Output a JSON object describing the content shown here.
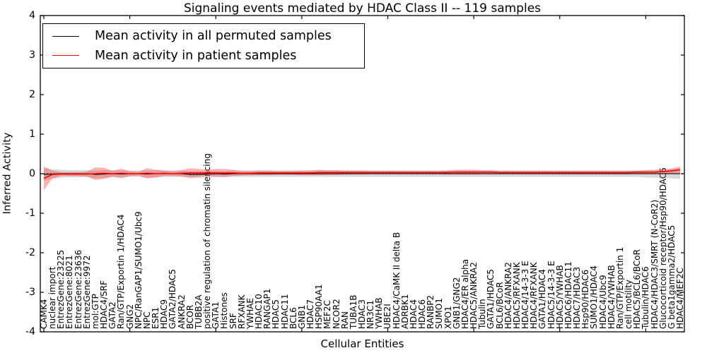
{
  "chart_data": {
    "type": "line",
    "title": "Signaling events mediated by HDAC Class II -- 119 samples",
    "xlabel": "Cellular Entities",
    "ylabel": "Inferred Activity",
    "ylim": [
      -4,
      4
    ],
    "ytick_labels": [
      "4",
      "3",
      "2",
      "1",
      "0",
      "-1",
      "-2",
      "-3",
      "-4"
    ],
    "yticks": [
      4,
      3,
      2,
      1,
      0,
      -1,
      -2,
      -3,
      -4
    ],
    "grid": false,
    "legend_position": "upper left",
    "zero_line_style": "black dotted",
    "frame_color": "#000000",
    "categories": [
      "CAMK4",
      "nuclear import",
      "EntrezGene:23225",
      "EntrezGene:8021",
      "EntrezGene:23636",
      "EntrezGene:9972",
      "mol:GTP",
      "HDAC4/SRF",
      "GATA2",
      "Ran/GTP/Exportin 1/HDAC4",
      "GNG2",
      "NPC/RanGAP1/SUMO1/Ubc9",
      "NPC",
      "ESR1",
      "HDAC9",
      "GATA2/HDAC5",
      "ANKRA2",
      "BCOR",
      "TUBB2A",
      "positive regulation of chromatin silencing",
      "GATA1",
      "Histones",
      "SRF",
      "RFXANK",
      "YWHAE",
      "HDAC10",
      "RANGAP1",
      "HDAC5",
      "HDAC11",
      "BCL6",
      "GNB1",
      "HDAC7",
      "HSP90AA1",
      "MEF2C",
      "NCOR2",
      "RAN",
      "TUBA1B",
      "HDAC3",
      "NR3C1",
      "YWHAB",
      "UBE2I",
      "HDAC4/CaMK II delta B",
      "ADRBK1",
      "HDAC4",
      "HDAC6",
      "RANBP2",
      "SUMO1",
      "XPO1",
      "GNB1/GNG2",
      "HDAC4/ER alpha",
      "HDAC5/ANKRA2",
      "Tubulin",
      "GATA1/HDAC5",
      "BCL6/BCoR",
      "HDAC4/ANKRA2",
      "HDAC5/RFXANK",
      "HDAC4/14-3-3 E",
      "HDAC4/RFXANK",
      "GATA1/HDAC4",
      "HDAC5/14-3-3 E",
      "HDAC5/YWHAB",
      "HDAC6/HDAC11",
      "HDAC7/HDAC3",
      "Hsp90/HDAC6",
      "SUMO1/HDAC4",
      "HDAC4/Ubc9",
      "HDAC4/YWHAB",
      "Ran/GTP/Exportin 1",
      "cell motility",
      "HDAC5/BCL6/BCoR",
      "Tubulin/HDAC6",
      "HDAC4/HDAC3/SMRT (N-CoR2)",
      "Glucocorticoid receptor/Hsp90/HDAC6",
      "G beta1gamma2/HDAC5",
      "HDAC4/MEF2C"
    ],
    "series": [
      {
        "name": "Mean activity in all permuted samples",
        "color": "#000000",
        "band_color": "rgba(128,128,128,0.30)",
        "values": [
          -0.02,
          -0.01,
          0,
          0,
          0,
          0,
          -0.02,
          -0.01,
          0,
          -0.01,
          0,
          0,
          -0.01,
          0,
          0,
          0,
          0,
          -0.02,
          -0.02,
          -0.01,
          0,
          -0.01,
          0,
          0,
          0,
          0,
          0,
          0,
          0,
          0,
          0,
          0,
          0,
          0,
          0,
          0,
          0,
          0,
          0,
          0,
          0,
          0,
          0,
          0,
          0,
          0,
          0,
          0,
          0,
          0,
          0,
          0,
          0,
          0,
          0,
          0,
          0,
          0,
          0,
          0,
          0,
          0,
          0,
          0,
          0,
          0,
          0,
          0,
          0,
          0,
          0,
          0,
          0,
          0,
          0
        ],
        "std": [
          0.16,
          0.12,
          0.1,
          0.09,
          0.09,
          0.09,
          0.1,
          0.1,
          0.09,
          0.09,
          0.08,
          0.08,
          0.09,
          0.09,
          0.08,
          0.08,
          0.08,
          0.09,
          0.09,
          0.08,
          0.08,
          0.08,
          0.08,
          0.08,
          0.08,
          0.08,
          0.08,
          0.08,
          0.08,
          0.08,
          0.08,
          0.08,
          0.08,
          0.08,
          0.08,
          0.08,
          0.08,
          0.08,
          0.08,
          0.08,
          0.08,
          0.08,
          0.08,
          0.08,
          0.08,
          0.08,
          0.08,
          0.08,
          0.08,
          0.08,
          0.08,
          0.08,
          0.08,
          0.08,
          0.08,
          0.08,
          0.08,
          0.08,
          0.08,
          0.08,
          0.08,
          0.08,
          0.08,
          0.08,
          0.08,
          0.08,
          0.08,
          0.08,
          0.08,
          0.08,
          0.1,
          0.1,
          0.11,
          0.12,
          0.13
        ]
      },
      {
        "name": "Mean activity in patient samples",
        "color": "#ff0000",
        "band_color": "rgba(255,40,40,0.35)",
        "values": [
          -0.12,
          -0.02,
          -0.01,
          -0.01,
          -0.01,
          -0.01,
          0,
          0.01,
          0,
          0.01,
          0,
          0,
          0.01,
          0,
          0.01,
          0,
          0.01,
          0.02,
          0.02,
          0.02,
          0.02,
          0.02,
          0.02,
          0.01,
          0.01,
          0.02,
          0.02,
          0.02,
          0.02,
          0.02,
          0.02,
          0.02,
          0.03,
          0.03,
          0.03,
          0.03,
          0.03,
          0.03,
          0.03,
          0.03,
          0.03,
          0.03,
          0.03,
          0.03,
          0.03,
          0.03,
          0.03,
          0.03,
          0.04,
          0.04,
          0.04,
          0.04,
          0.04,
          0.03,
          0.03,
          0.03,
          0.03,
          0.03,
          0.03,
          0.03,
          0.03,
          0.03,
          0.03,
          0.03,
          0.03,
          0.03,
          0.03,
          0.03,
          0.03,
          0.04,
          0.04,
          0.04,
          0.05,
          0.07,
          0.1
        ],
        "std": [
          0.3,
          0.1,
          0.05,
          0.05,
          0.05,
          0.06,
          0.16,
          0.14,
          0.07,
          0.12,
          0.06,
          0.05,
          0.13,
          0.1,
          0.07,
          0.06,
          0.08,
          0.12,
          0.1,
          0.08,
          0.1,
          0.1,
          0.08,
          0.06,
          0.05,
          0.06,
          0.06,
          0.05,
          0.05,
          0.05,
          0.06,
          0.06,
          0.07,
          0.06,
          0.06,
          0.05,
          0.05,
          0.05,
          0.04,
          0.04,
          0.04,
          0.04,
          0.04,
          0.04,
          0.04,
          0.04,
          0.04,
          0.05,
          0.06,
          0.06,
          0.06,
          0.05,
          0.05,
          0.04,
          0.04,
          0.04,
          0.04,
          0.04,
          0.04,
          0.04,
          0.04,
          0.04,
          0.04,
          0.04,
          0.04,
          0.04,
          0.04,
          0.04,
          0.04,
          0.04,
          0.04,
          0.05,
          0.05,
          0.06,
          0.08
        ]
      }
    ]
  }
}
